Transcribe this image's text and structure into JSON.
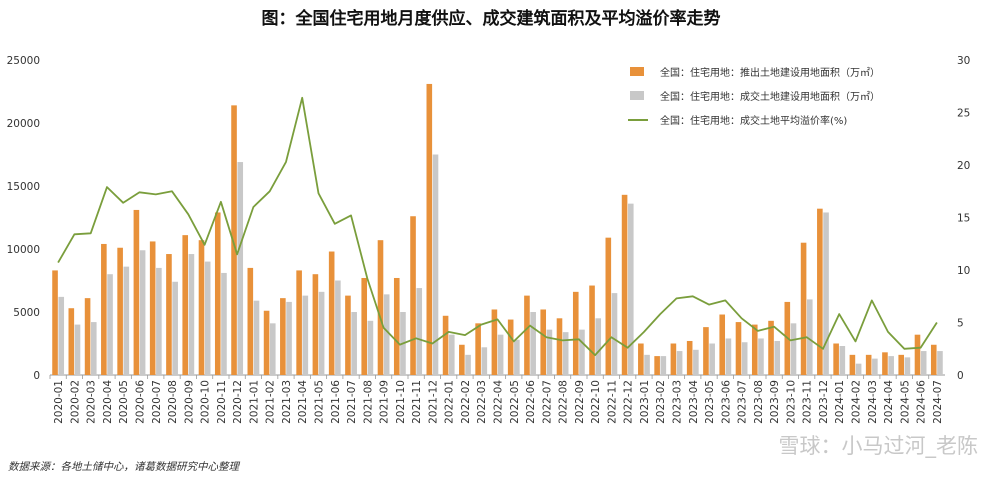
{
  "chart_data": {
    "type": "bar",
    "title": "图：全国住宅用地月度供应、成交建筑面积及平均溢价率走势",
    "source": "数据来源：各地土储中心，诸葛数据研究中心整理",
    "watermark": "雪球：小马过河_老陈",
    "categories": [
      "2020-01",
      "2020-02",
      "2020-03",
      "2020-04",
      "2020-05",
      "2020-06",
      "2020-07",
      "2020-08",
      "2020-09",
      "2020-10",
      "2020-11",
      "2020-12",
      "2021-01",
      "2021-02",
      "2021-03",
      "2021-04",
      "2021-05",
      "2021-06",
      "2021-07",
      "2021-08",
      "2021-09",
      "2021-10",
      "2021-11",
      "2021-12",
      "2022-01",
      "2022-02",
      "2022-03",
      "2022-04",
      "2022-05",
      "2022-06",
      "2022-07",
      "2022-08",
      "2022-09",
      "2022-10",
      "2022-11",
      "2022-12",
      "2023-01",
      "2023-02",
      "2023-03",
      "2023-04",
      "2023-05",
      "2023-06",
      "2023-07",
      "2023-08",
      "2023-09",
      "2023-10",
      "2023-11",
      "2023-12",
      "2024-01",
      "2024-02",
      "2024-03",
      "2024-04",
      "2024-05",
      "2024-06",
      "2024-07"
    ],
    "y_left": {
      "ylim": [
        0,
        25000
      ],
      "ticks": [
        0,
        5000,
        10000,
        15000,
        20000,
        25000
      ]
    },
    "y_right": {
      "ylim": [
        0,
        30
      ],
      "ticks": [
        0,
        5,
        10,
        15,
        20,
        25,
        30
      ]
    },
    "legend_position": "top-right",
    "series": [
      {
        "name": "全国：住宅用地：推出土地建设用地面积（万㎡）",
        "kind": "bar",
        "axis": "left",
        "color": "#e8913a",
        "values": [
          8300,
          5300,
          6100,
          10400,
          10100,
          13100,
          10600,
          9600,
          11100,
          10700,
          12900,
          21400,
          8500,
          5100,
          6100,
          8300,
          8000,
          9800,
          6300,
          7700,
          10700,
          7700,
          12600,
          23100,
          4700,
          2400,
          4100,
          5200,
          4400,
          6300,
          5200,
          4500,
          6600,
          7100,
          10900,
          14300,
          2500,
          1500,
          2500,
          2700,
          3800,
          4800,
          4200,
          4000,
          4300,
          5800,
          10500,
          13200,
          2500,
          1600,
          1600,
          1800,
          1600,
          3200,
          2400
        ]
      },
      {
        "name": "全国：住宅用地：成交土地建设用地面积（万㎡）",
        "kind": "bar",
        "axis": "left",
        "color": "#c8c8c8",
        "values": [
          6200,
          4000,
          4200,
          8000,
          8600,
          9900,
          8500,
          7400,
          9600,
          9000,
          8100,
          16900,
          5900,
          4100,
          5800,
          6300,
          6600,
          7500,
          5000,
          4300,
          6400,
          5000,
          6900,
          17500,
          3200,
          1600,
          2200,
          3200,
          2800,
          5000,
          3600,
          3400,
          3600,
          4500,
          6500,
          13600,
          1600,
          1500,
          1900,
          2000,
          2500,
          2900,
          2600,
          2900,
          2700,
          4100,
          6000,
          12900,
          2300,
          900,
          1300,
          1500,
          1400,
          1900,
          1900
        ]
      },
      {
        "name": "全国：住宅用地：成交土地平均溢价率(%)",
        "kind": "line",
        "axis": "right",
        "color": "#7a9e3c",
        "values": [
          10.7,
          13.4,
          13.5,
          17.9,
          16.4,
          17.4,
          17.2,
          17.5,
          15.3,
          12.4,
          16.5,
          11.5,
          16.0,
          17.5,
          20.3,
          26.4,
          17.3,
          14.4,
          15.2,
          9.2,
          4.5,
          2.9,
          3.5,
          3.0,
          4.1,
          3.8,
          4.8,
          5.3,
          3.2,
          4.7,
          3.6,
          3.3,
          3.4,
          1.9,
          3.6,
          2.6,
          4.1,
          5.8,
          7.3,
          7.5,
          6.7,
          7.1,
          5.4,
          4.2,
          4.6,
          3.3,
          3.6,
          2.5,
          5.8,
          3.2,
          7.1,
          4.1,
          2.5,
          2.6,
          5.0
        ]
      }
    ]
  }
}
